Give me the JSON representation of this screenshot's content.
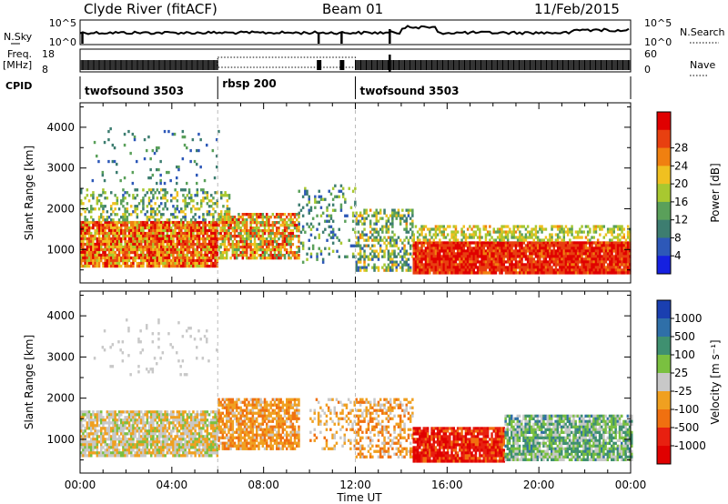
{
  "header": {
    "station": "Clyde River (fitACF)",
    "beam": "Beam 01",
    "date": "11/Feb/2015"
  },
  "top_panels": {
    "nsky_label": "N.Sky",
    "nsearch_label": "N.Search",
    "freq_label": "Freq.",
    "freq_unit": "[MHz]",
    "nave_label": "Nave",
    "cpid_label": "CPID",
    "nsky_ticks": [
      "10^5",
      "10^0"
    ],
    "nsearch_ticks": [
      "10^5",
      "10^0"
    ],
    "freq_ticks": [
      "18",
      "8"
    ],
    "nave_ticks": [
      "60",
      "0"
    ]
  },
  "cpid_segments": [
    {
      "label": "twofsound 3503",
      "start_hour": 0
    },
    {
      "label": "rbsp 200",
      "start_hour": 6
    },
    {
      "label": "twofsound 3503",
      "start_hour": 12
    }
  ],
  "axes": {
    "xlabel": "Time UT",
    "ylabel": "Slant Range [km]",
    "x_ticks": [
      "00:00",
      "04:00",
      "08:00",
      "12:00",
      "16:00",
      "20:00",
      "00:00"
    ],
    "y_ticks": [
      "1000",
      "2000",
      "3000",
      "4000"
    ]
  },
  "power_colorbar": {
    "label": "Power [dB]",
    "ticks": [
      "4",
      "8",
      "12",
      "16",
      "20",
      "24",
      "28"
    ],
    "colors": [
      "#1520e0",
      "#2d58b8",
      "#3d7d70",
      "#5aa05a",
      "#a8c830",
      "#f0c020",
      "#f08010",
      "#e84010",
      "#e00000"
    ]
  },
  "velocity_colorbar": {
    "label": "Velocity [m s⁻¹]",
    "ticks": [
      "1000",
      "500",
      "100",
      "25",
      "-25",
      "-100",
      "-500",
      "-1000"
    ],
    "colors": [
      "#1a3fb0",
      "#2f6fa8",
      "#3f9070",
      "#7ac040",
      "#c8c8c8",
      "#f0a020",
      "#f07010",
      "#e82010",
      "#e00000"
    ]
  },
  "chart_data": [
    {
      "type": "heatmap",
      "title": "Power",
      "xlabel": "Time UT",
      "ylabel": "Slant Range [km]",
      "xlim": [
        0,
        24
      ],
      "ylim": [
        180,
        4600
      ],
      "zlabel": "Power [dB]",
      "zlim": [
        0,
        32
      ],
      "bands": [
        {
          "t0": 0.0,
          "t1": 6.0,
          "r0": 600,
          "r1": 1700,
          "density": 0.92,
          "zmin": 16,
          "zmax": 32
        },
        {
          "t0": 0.0,
          "t1": 6.5,
          "r0": 1700,
          "r1": 2500,
          "density": 0.35,
          "zmin": 6,
          "zmax": 20
        },
        {
          "t0": 6.0,
          "t1": 9.5,
          "r0": 800,
          "r1": 1900,
          "density": 0.75,
          "zmin": 12,
          "zmax": 30
        },
        {
          "t0": 9.5,
          "t1": 12.0,
          "r0": 700,
          "r1": 2600,
          "density": 0.18,
          "zmin": 4,
          "zmax": 16
        },
        {
          "t0": 12.0,
          "t1": 14.5,
          "r0": 500,
          "r1": 2000,
          "density": 0.45,
          "zmin": 6,
          "zmax": 22
        },
        {
          "t0": 14.5,
          "t1": 24.0,
          "r0": 400,
          "r1": 1200,
          "density": 0.97,
          "zmin": 24,
          "zmax": 32
        },
        {
          "t0": 14.5,
          "t1": 24.0,
          "r0": 1200,
          "r1": 1600,
          "density": 0.5,
          "zmin": 12,
          "zmax": 22
        },
        {
          "t0": 0.5,
          "t1": 6.0,
          "r0": 2600,
          "r1": 4000,
          "density": 0.06,
          "zmin": 4,
          "zmax": 14
        }
      ]
    },
    {
      "type": "heatmap",
      "title": "Velocity",
      "xlabel": "Time UT",
      "ylabel": "Slant Range [km]",
      "xlim": [
        0,
        24
      ],
      "ylim": [
        180,
        4600
      ],
      "zlabel": "Velocity [m s⁻¹]",
      "zlim": [
        -1000,
        1000
      ],
      "bands": [
        {
          "t0": 0.0,
          "t1": 6.0,
          "r0": 600,
          "r1": 1700,
          "density": 0.85,
          "zmin": -300,
          "zmax": 200
        },
        {
          "t0": 6.0,
          "t1": 9.5,
          "r0": 800,
          "r1": 2000,
          "density": 0.75,
          "zmin": -500,
          "zmax": -50
        },
        {
          "t0": 10.0,
          "t1": 12.0,
          "r0": 800,
          "r1": 2000,
          "density": 0.25,
          "zmin": -400,
          "zmax": 100
        },
        {
          "t0": 12.0,
          "t1": 14.5,
          "r0": 600,
          "r1": 2000,
          "density": 0.45,
          "zmin": -500,
          "zmax": 0
        },
        {
          "t0": 14.5,
          "t1": 18.5,
          "r0": 500,
          "r1": 1300,
          "density": 0.9,
          "zmin": -1000,
          "zmax": -400
        },
        {
          "t0": 18.5,
          "t1": 24.0,
          "r0": 500,
          "r1": 1600,
          "density": 0.85,
          "zmin": -100,
          "zmax": 600
        },
        {
          "t0": 0.5,
          "t1": 6.0,
          "r0": 2600,
          "r1": 4000,
          "density": 0.05,
          "zmin": -50,
          "zmax": 50
        }
      ]
    }
  ]
}
